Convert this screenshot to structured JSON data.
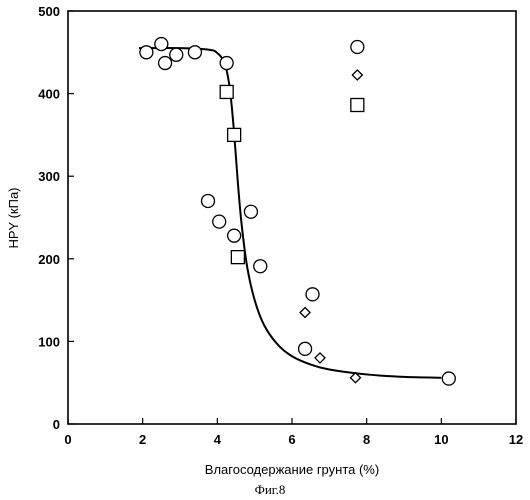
{
  "chart_data": {
    "type": "scatter",
    "xlabel": "Влагосодержание грунта (%)",
    "ylabel": "HPY (кПа)",
    "caption": "Фиг.8",
    "xlim": [
      0,
      12
    ],
    "ylim": [
      0,
      500
    ],
    "x_ticks": [
      0,
      2,
      4,
      6,
      8,
      10,
      12
    ],
    "y_ticks": [
      0,
      100,
      200,
      300,
      400,
      500
    ],
    "grid": false,
    "legend": {
      "placement": "top-right",
      "markers": [
        "circle",
        "diamond",
        "square"
      ]
    },
    "series": [
      {
        "marker": "circle",
        "points": [
          {
            "x": 2.1,
            "y": 450
          },
          {
            "x": 2.5,
            "y": 460
          },
          {
            "x": 2.6,
            "y": 437
          },
          {
            "x": 2.9,
            "y": 447
          },
          {
            "x": 3.4,
            "y": 450
          },
          {
            "x": 4.25,
            "y": 437
          },
          {
            "x": 3.75,
            "y": 270
          },
          {
            "x": 4.05,
            "y": 245
          },
          {
            "x": 4.45,
            "y": 228
          },
          {
            "x": 4.9,
            "y": 257
          },
          {
            "x": 5.15,
            "y": 191
          },
          {
            "x": 6.35,
            "y": 91
          },
          {
            "x": 6.55,
            "y": 157
          },
          {
            "x": 10.2,
            "y": 55
          }
        ]
      },
      {
        "marker": "diamond",
        "points": [
          {
            "x": 6.35,
            "y": 135
          },
          {
            "x": 6.75,
            "y": 80
          },
          {
            "x": 7.7,
            "y": 56
          }
        ]
      },
      {
        "marker": "square",
        "points": [
          {
            "x": 4.25,
            "y": 402
          },
          {
            "x": 4.45,
            "y": 350
          },
          {
            "x": 4.55,
            "y": 202
          }
        ]
      }
    ],
    "fit_curve": {
      "x": [
        1.9,
        3.0,
        3.8,
        4.0,
        4.15,
        4.25,
        4.35,
        4.45,
        4.55,
        4.65,
        4.8,
        5.0,
        5.25,
        5.6,
        6.0,
        6.5,
        7.0,
        8.0,
        9.0,
        10.0
      ],
      "y": [
        455,
        455,
        453,
        449,
        441,
        428,
        400,
        352,
        292,
        242,
        190,
        150,
        120,
        97,
        82,
        72,
        66,
        60,
        57,
        56
      ]
    }
  }
}
